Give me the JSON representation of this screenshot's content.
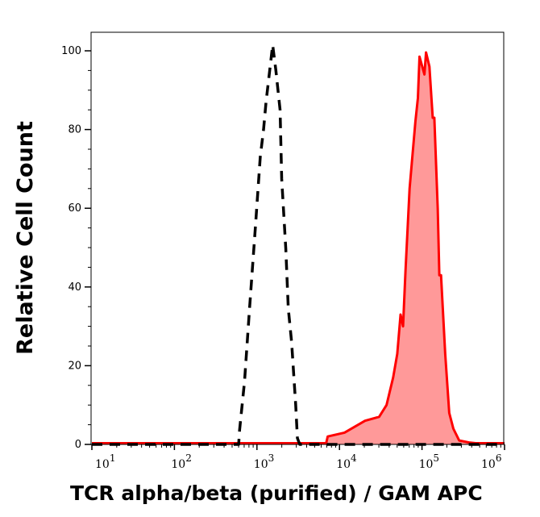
{
  "chart_data": {
    "type": "area",
    "title": "",
    "xlabel": "TCR alpha/beta (purified) / GAM APC",
    "ylabel": "Relative Cell Count",
    "x_scale": "log",
    "xlim": [
      10,
      1000000
    ],
    "ylim": [
      0,
      105
    ],
    "x_ticks": [
      {
        "base": "10",
        "exp": "1"
      },
      {
        "base": "10",
        "exp": "2"
      },
      {
        "base": "10",
        "exp": "3"
      },
      {
        "base": "10",
        "exp": "4"
      },
      {
        "base": "10",
        "exp": "5"
      },
      {
        "base": "10",
        "exp": "6"
      }
    ],
    "y_ticks": [
      "0",
      "20",
      "40",
      "60",
      "80",
      "100"
    ],
    "grid": false,
    "series": [
      {
        "style": "dashed-line",
        "color": "#000000",
        "x": [
          10,
          600,
          617,
          708,
          813,
          955,
          1096,
          1202,
          1288,
          1445,
          1549,
          1698,
          1905,
          1995,
          2239,
          2399,
          2630,
          2951,
          3090,
          3300,
          1000000
        ],
        "y": [
          0,
          0,
          3.7,
          16,
          34.5,
          55,
          73,
          80,
          87,
          96,
          101.5,
          95,
          85,
          67.5,
          49.7,
          34.5,
          26,
          10,
          1.6,
          0,
          0
        ]
      },
      {
        "style": "filled-line",
        "color": "#ff0000",
        "fill": "#ff9999",
        "x": [
          10,
          6900,
          7200,
          11500,
          20400,
          30200,
          37200,
          44700,
          50100,
          55000,
          58900,
          63100,
          70800,
          83200,
          89100,
          93300,
          107000,
          112000,
          123000,
          135000,
          141000,
          155000,
          162000,
          170000,
          191000,
          214000,
          240000,
          282000,
          372000,
          447000,
          1000000
        ],
        "y": [
          0.3,
          0.3,
          2,
          3,
          6,
          7,
          10,
          17,
          23,
          33,
          30,
          44,
          65,
          82,
          88,
          98.5,
          94,
          99.6,
          96,
          83,
          83,
          60,
          43,
          43,
          23,
          8,
          4,
          1,
          0.5,
          0.3,
          0.3
        ]
      }
    ]
  }
}
